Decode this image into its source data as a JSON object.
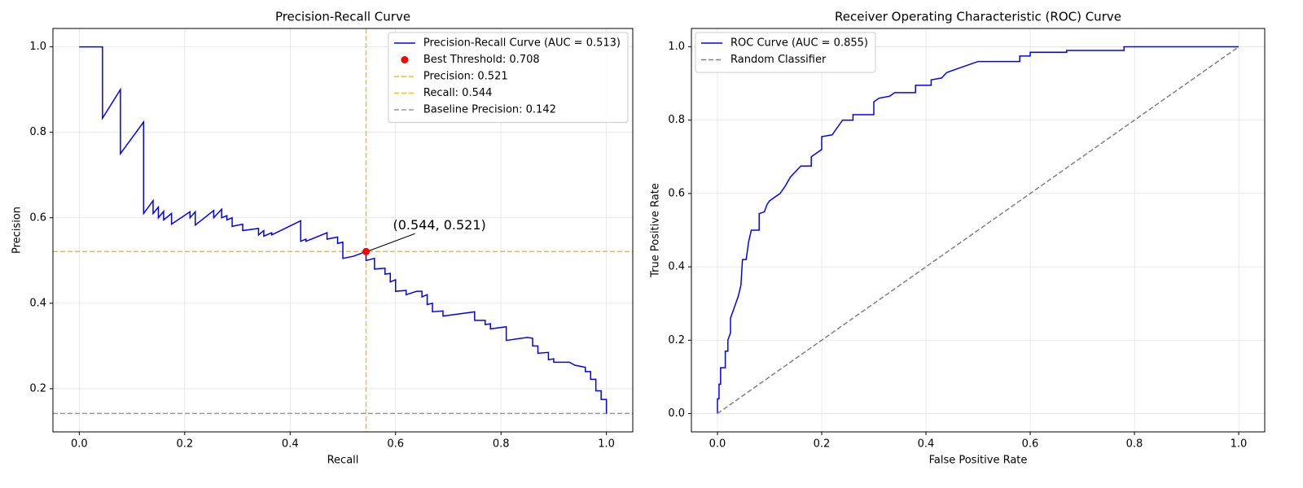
{
  "chart_data": [
    {
      "type": "line",
      "title": "Precision-Recall Curve",
      "xlabel": "Recall",
      "ylabel": "Precision",
      "xlim": [
        -0.05,
        1.05
      ],
      "ylim": [
        0.099,
        1.043
      ],
      "xticks": [
        {
          "value": 0,
          "label": "0.0"
        },
        0.2,
        0.4,
        0.6,
        0.8,
        {
          "value": 1,
          "label": "1.0"
        }
      ],
      "yticks": [
        0.2,
        0.4,
        0.6,
        0.8,
        {
          "value": 1,
          "label": "1.0"
        }
      ],
      "grid": true,
      "legend": "upper right",
      "series": [
        {
          "name": "Precision-Recall Curve (AUC = 0.513)",
          "color": "#0000ff",
          "linestyle": "solid",
          "x": [
            0,
            0.044,
            0.044,
            0.078,
            0.078,
            0.122,
            0.122,
            0.14,
            0.14,
            0.15,
            0.15,
            0.16,
            0.16,
            0.175,
            0.175,
            0.21,
            0.21,
            0.22,
            0.22,
            0.255,
            0.255,
            0.27,
            0.27,
            0.28,
            0.28,
            0.29,
            0.29,
            0.31,
            0.31,
            0.34,
            0.34,
            0.35,
            0.35,
            0.365,
            0.365,
            0.42,
            0.42,
            0.43,
            0.43,
            0.47,
            0.47,
            0.49,
            0.49,
            0.5,
            0.5,
            0.52,
            0.544,
            0.544,
            0.56,
            0.56,
            0.58,
            0.58,
            0.59,
            0.59,
            0.6,
            0.6,
            0.62,
            0.62,
            0.64,
            0.65,
            0.65,
            0.66,
            0.66,
            0.67,
            0.67,
            0.69,
            0.69,
            0.72,
            0.75,
            0.75,
            0.77,
            0.77,
            0.78,
            0.78,
            0.81,
            0.81,
            0.85,
            0.86,
            0.86,
            0.87,
            0.87,
            0.89,
            0.89,
            0.9,
            0.9,
            0.93,
            0.94,
            0.96,
            0.96,
            0.97,
            0.97,
            0.98,
            0.98,
            0.99,
            0.99,
            1.0,
            1.0
          ],
          "values": [
            1.0,
            1.0,
            0.833,
            0.9,
            0.75,
            0.824,
            0.61,
            0.64,
            0.61,
            0.625,
            0.6,
            0.615,
            0.595,
            0.61,
            0.585,
            0.614,
            0.6,
            0.614,
            0.583,
            0.617,
            0.6,
            0.62,
            0.6,
            0.605,
            0.595,
            0.6,
            0.58,
            0.585,
            0.57,
            0.575,
            0.56,
            0.57,
            0.557,
            0.565,
            0.56,
            0.593,
            0.545,
            0.55,
            0.545,
            0.565,
            0.55,
            0.555,
            0.54,
            0.543,
            0.505,
            0.51,
            0.521,
            0.5,
            0.505,
            0.48,
            0.482,
            0.468,
            0.47,
            0.45,
            0.455,
            0.428,
            0.43,
            0.42,
            0.428,
            0.428,
            0.415,
            0.42,
            0.397,
            0.4,
            0.38,
            0.382,
            0.37,
            0.375,
            0.38,
            0.36,
            0.36,
            0.35,
            0.352,
            0.34,
            0.345,
            0.313,
            0.32,
            0.318,
            0.3,
            0.3,
            0.283,
            0.285,
            0.268,
            0.27,
            0.262,
            0.262,
            0.255,
            0.25,
            0.24,
            0.24,
            0.222,
            0.222,
            0.195,
            0.195,
            0.175,
            0.175,
            0.142
          ]
        }
      ],
      "points": [
        {
          "name": "Best Threshold: 0.708",
          "color": "#ff0000",
          "x": 0.544,
          "y": 0.521
        }
      ],
      "annotations": [
        {
          "text": "(0.544, 0.521)",
          "x": 0.544,
          "y": 0.521
        }
      ],
      "reference_lines": [
        {
          "name": "Precision: 0.521",
          "orientation": "horizontal",
          "value": 0.521,
          "color": "#ffa500",
          "alpha": 0.8
        },
        {
          "name": "Recall: 0.544",
          "orientation": "vertical",
          "value": 0.544,
          "color": "#ffa500",
          "alpha": 0.8
        },
        {
          "name": "Baseline Precision: 0.142",
          "orientation": "horizontal",
          "value": 0.142,
          "color": "#808080",
          "alpha": 0.8
        }
      ]
    },
    {
      "type": "line",
      "title": "Receiver Operating Characteristic (ROC) Curve",
      "xlabel": "False Positive Rate",
      "ylabel": "True Positive Rate",
      "xlim": [
        -0.05,
        1.05
      ],
      "ylim": [
        -0.05,
        1.05
      ],
      "xticks": [
        {
          "value": 0,
          "label": "0.0"
        },
        0.2,
        0.4,
        0.6,
        0.8,
        {
          "value": 1,
          "label": "1.0"
        }
      ],
      "yticks": [
        {
          "value": 0,
          "label": "0.0"
        },
        0.2,
        0.4,
        0.6,
        0.8,
        {
          "value": 1,
          "label": "1.0"
        }
      ],
      "grid": true,
      "legend": "upper left",
      "series": [
        {
          "name": "ROC Curve (AUC = 0.855)",
          "color": "#0000ff",
          "linestyle": "solid",
          "x": [
            0,
            0,
            0.003,
            0.003,
            0.006,
            0.006,
            0.015,
            0.015,
            0.02,
            0.02,
            0.025,
            0.025,
            0.03,
            0.035,
            0.04,
            0.045,
            0.048,
            0.055,
            0.06,
            0.065,
            0.08,
            0.08,
            0.09,
            0.095,
            0.1,
            0.11,
            0.12,
            0.13,
            0.14,
            0.15,
            0.16,
            0.18,
            0.18,
            0.2,
            0.2,
            0.22,
            0.23,
            0.24,
            0.26,
            0.26,
            0.3,
            0.3,
            0.31,
            0.33,
            0.34,
            0.38,
            0.38,
            0.41,
            0.41,
            0.43,
            0.44,
            0.46,
            0.48,
            0.5,
            0.58,
            0.58,
            0.6,
            0.6,
            0.67,
            0.67,
            0.78,
            0.78,
            1.0
          ],
          "values": [
            0,
            0.04,
            0.04,
            0.08,
            0.08,
            0.125,
            0.125,
            0.17,
            0.17,
            0.2,
            0.22,
            0.26,
            0.28,
            0.3,
            0.32,
            0.35,
            0.42,
            0.42,
            0.47,
            0.5,
            0.5,
            0.545,
            0.55,
            0.57,
            0.58,
            0.59,
            0.6,
            0.62,
            0.645,
            0.66,
            0.675,
            0.675,
            0.7,
            0.72,
            0.755,
            0.76,
            0.78,
            0.8,
            0.8,
            0.815,
            0.815,
            0.85,
            0.86,
            0.865,
            0.875,
            0.875,
            0.895,
            0.895,
            0.91,
            0.915,
            0.93,
            0.94,
            0.95,
            0.96,
            0.96,
            0.975,
            0.975,
            0.985,
            0.985,
            0.99,
            0.99,
            1.0,
            1.0
          ]
        },
        {
          "name": "Random Classifier",
          "color": "#808080",
          "linestyle": "dashed",
          "x": [
            0,
            1
          ],
          "values": [
            0,
            1
          ]
        }
      ]
    }
  ]
}
